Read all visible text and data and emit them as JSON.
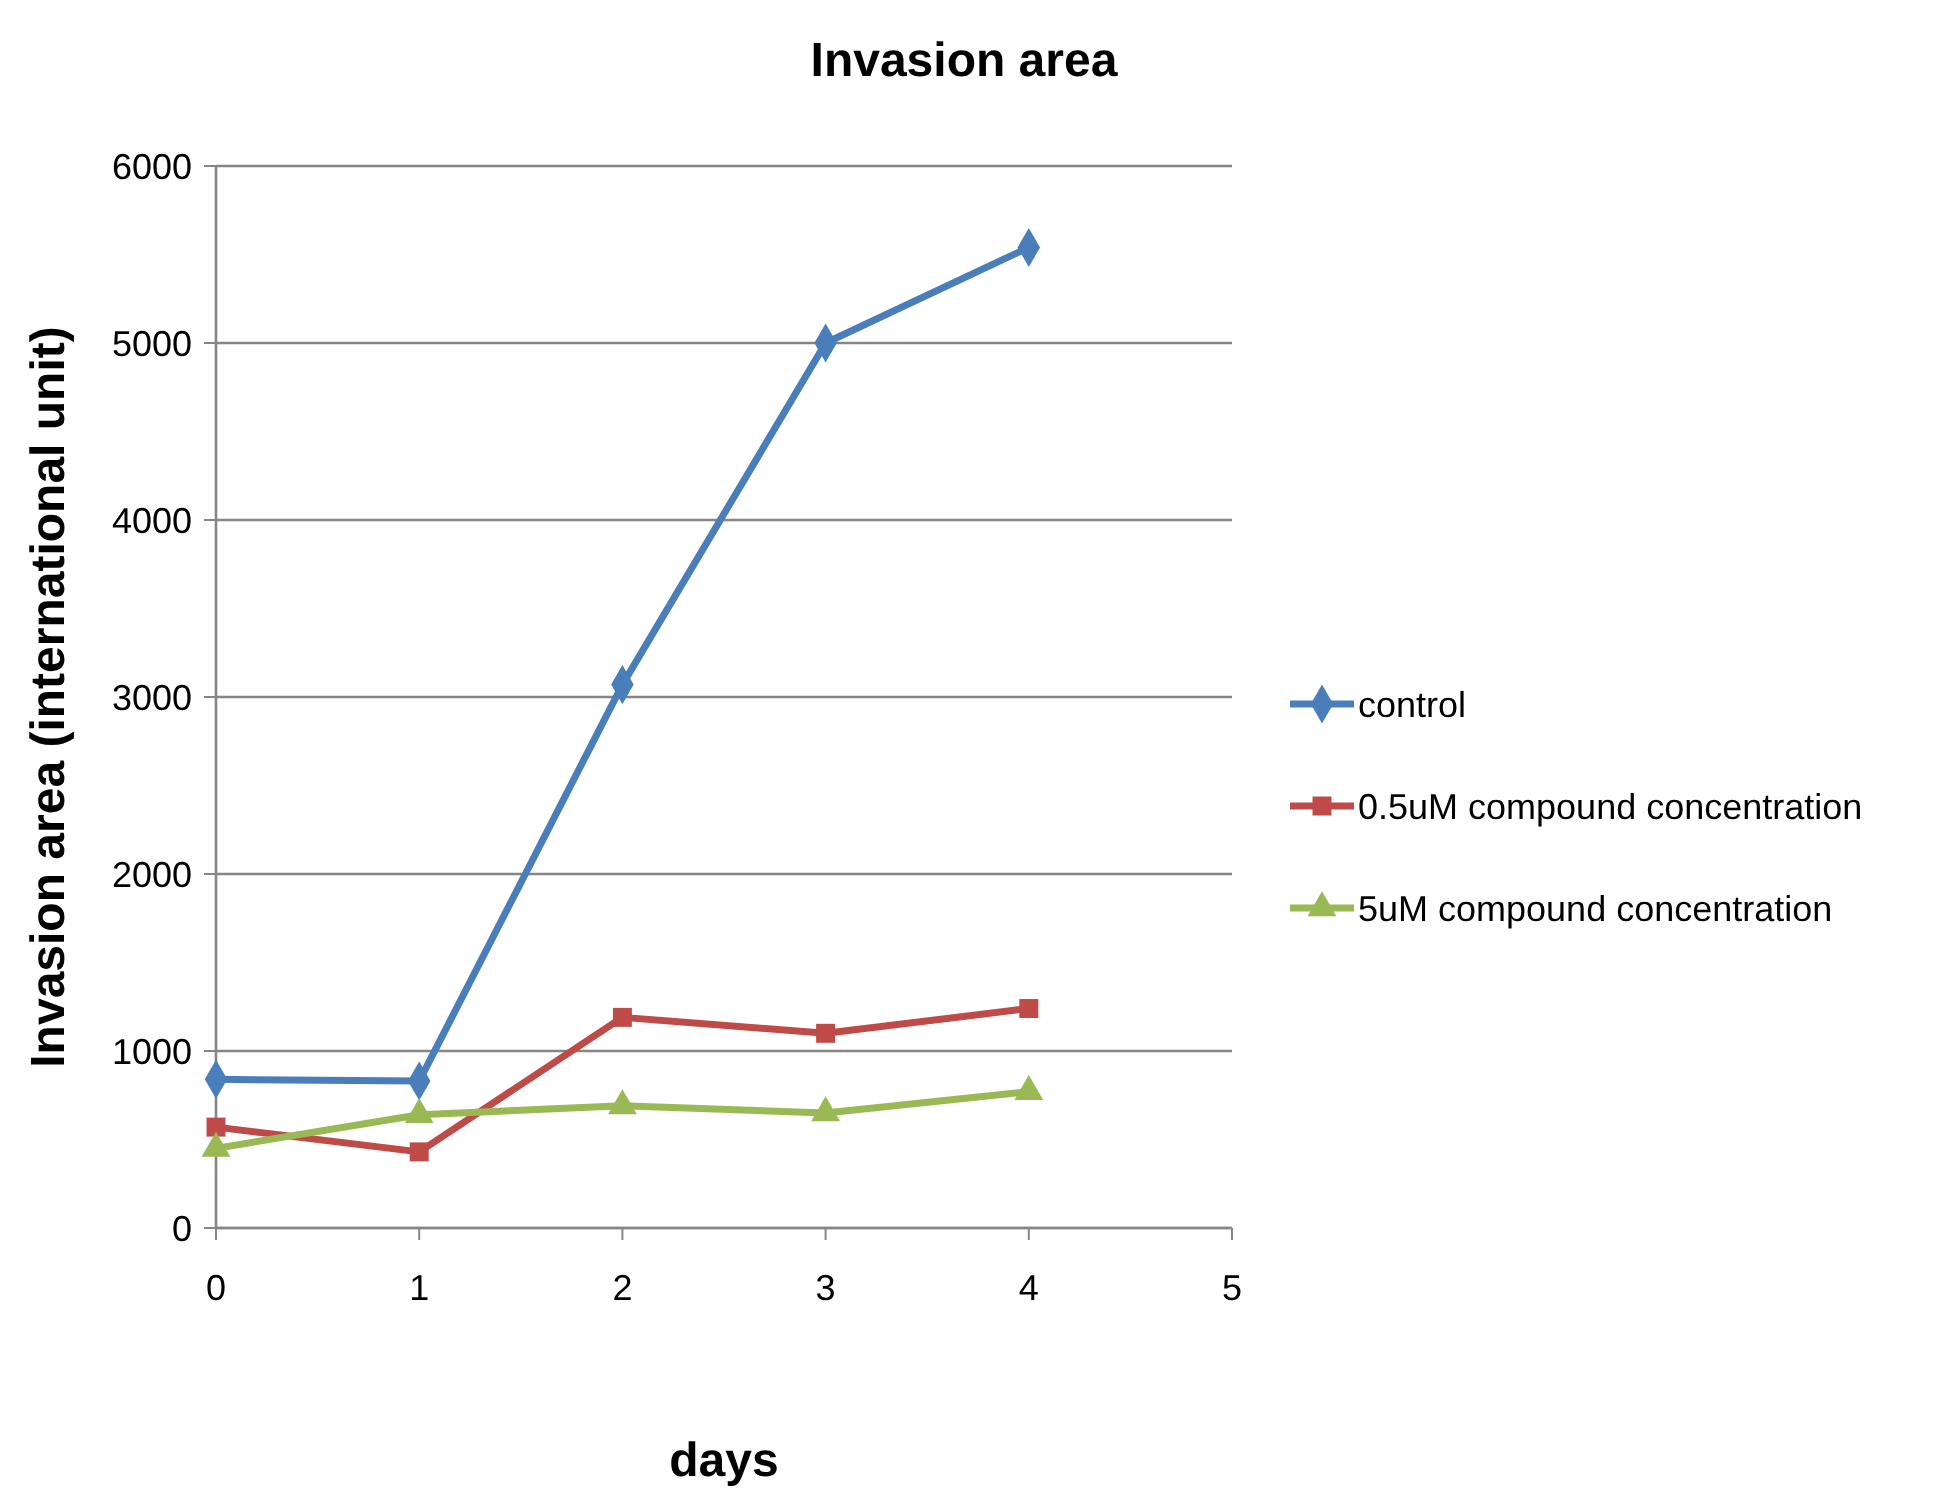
{
  "chart_data": {
    "type": "line",
    "title": "Invasion area",
    "xlabel": "days",
    "ylabel": "Invasion area (international unit)",
    "x": [
      0,
      1,
      2,
      3,
      4
    ],
    "xlim": [
      0,
      5
    ],
    "xticks": [
      0,
      1,
      2,
      3,
      4,
      5
    ],
    "ylim": [
      0,
      6000
    ],
    "yticks": [
      0,
      1000,
      2000,
      3000,
      4000,
      5000,
      6000
    ],
    "grid": "y",
    "legend": "right",
    "series": [
      {
        "name": "control",
        "color": "#4a7ebb",
        "marker": "diamond",
        "values": [
          840,
          830,
          3070,
          5000,
          5540
        ]
      },
      {
        "name": "0.5uM compound concentration",
        "color": "#be4b48",
        "marker": "square",
        "values": [
          570,
          430,
          1190,
          1100,
          1240
        ]
      },
      {
        "name": "5uM compound concentration",
        "color": "#98b954",
        "marker": "triangle",
        "values": [
          450,
          640,
          690,
          650,
          770
        ]
      }
    ]
  }
}
